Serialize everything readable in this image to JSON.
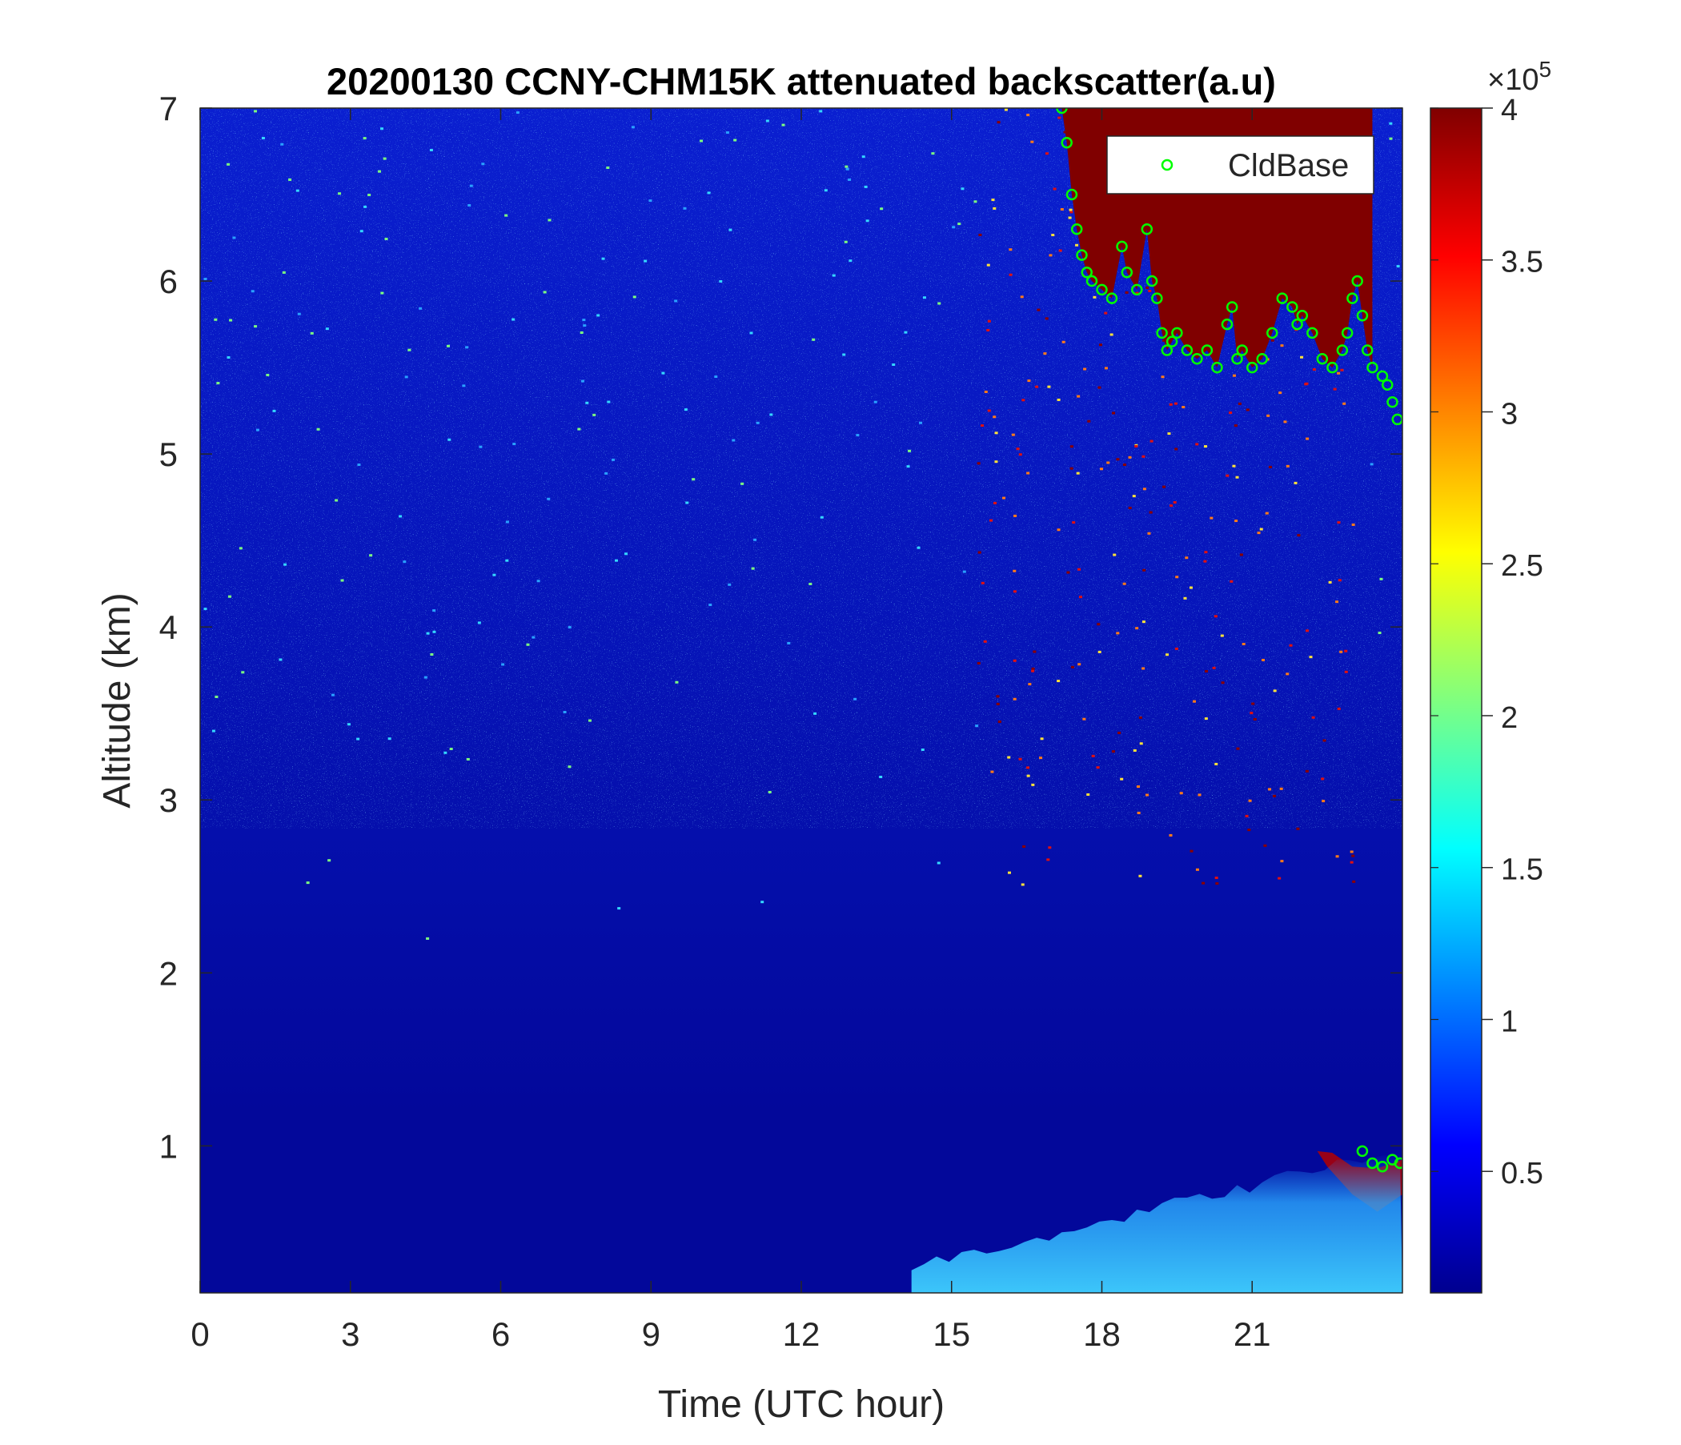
{
  "chart_data": {
    "type": "heatmap",
    "title": "20200130 CCNY-CHM15K attenuated backscatter(a.u)",
    "xlabel": "Time (UTC hour)",
    "ylabel": "Altitude (km)",
    "xlim": [
      0,
      24
    ],
    "ylim": [
      0.15,
      7
    ],
    "x_ticks": [
      0,
      3,
      6,
      9,
      12,
      15,
      18,
      21
    ],
    "x_tick_labels": [
      "0",
      "3",
      "6",
      "9",
      "12",
      "15",
      "18",
      "21"
    ],
    "y_ticks": [
      1,
      2,
      3,
      4,
      5,
      6,
      7
    ],
    "y_tick_labels": [
      "1",
      "2",
      "3",
      "4",
      "5",
      "6",
      "7"
    ],
    "colorbar": {
      "colormap": "jet",
      "range": [
        0.1,
        4
      ],
      "exponent_label": "×10",
      "exponent": "5",
      "ticks": [
        0.5,
        1,
        1.5,
        2,
        2.5,
        3,
        3.5,
        4
      ],
      "tick_labels": [
        "0.5",
        "1",
        "1.5",
        "2",
        "2.5",
        "3",
        "3.5",
        "4"
      ]
    },
    "legend": {
      "entries": [
        "CldBase"
      ],
      "placement": "top-right",
      "marker_color": "#00ff00"
    },
    "series": [
      {
        "name": "CldBase",
        "marker": "circle",
        "color": "#00ff00",
        "x": [
          17.2,
          17.3,
          17.4,
          17.5,
          17.6,
          17.7,
          17.8,
          18.0,
          18.2,
          18.4,
          18.5,
          18.7,
          18.9,
          19.0,
          19.1,
          19.2,
          19.3,
          19.4,
          19.5,
          19.7,
          19.9,
          20.1,
          20.3,
          20.5,
          20.6,
          20.7,
          20.8,
          21.0,
          21.2,
          21.4,
          21.6,
          21.8,
          21.9,
          22.0,
          22.2,
          22.4,
          22.6,
          22.8,
          22.9,
          23.0,
          23.1,
          23.2,
          23.3,
          23.4,
          23.6,
          23.7,
          23.8,
          23.9,
          23.2,
          23.4,
          23.6,
          23.8,
          23.95
        ],
        "y": [
          7.0,
          6.8,
          6.5,
          6.3,
          6.15,
          6.05,
          6.0,
          5.95,
          5.9,
          6.2,
          6.05,
          5.95,
          6.3,
          6.0,
          5.9,
          5.7,
          5.6,
          5.65,
          5.7,
          5.6,
          5.55,
          5.6,
          5.5,
          5.75,
          5.85,
          5.55,
          5.6,
          5.5,
          5.55,
          5.7,
          5.9,
          5.85,
          5.75,
          5.8,
          5.7,
          5.55,
          5.5,
          5.6,
          5.7,
          5.9,
          6.0,
          5.8,
          5.6,
          5.5,
          5.45,
          5.4,
          5.3,
          5.2,
          0.97,
          0.9,
          0.88,
          0.92,
          0.9
        ]
      }
    ]
  }
}
